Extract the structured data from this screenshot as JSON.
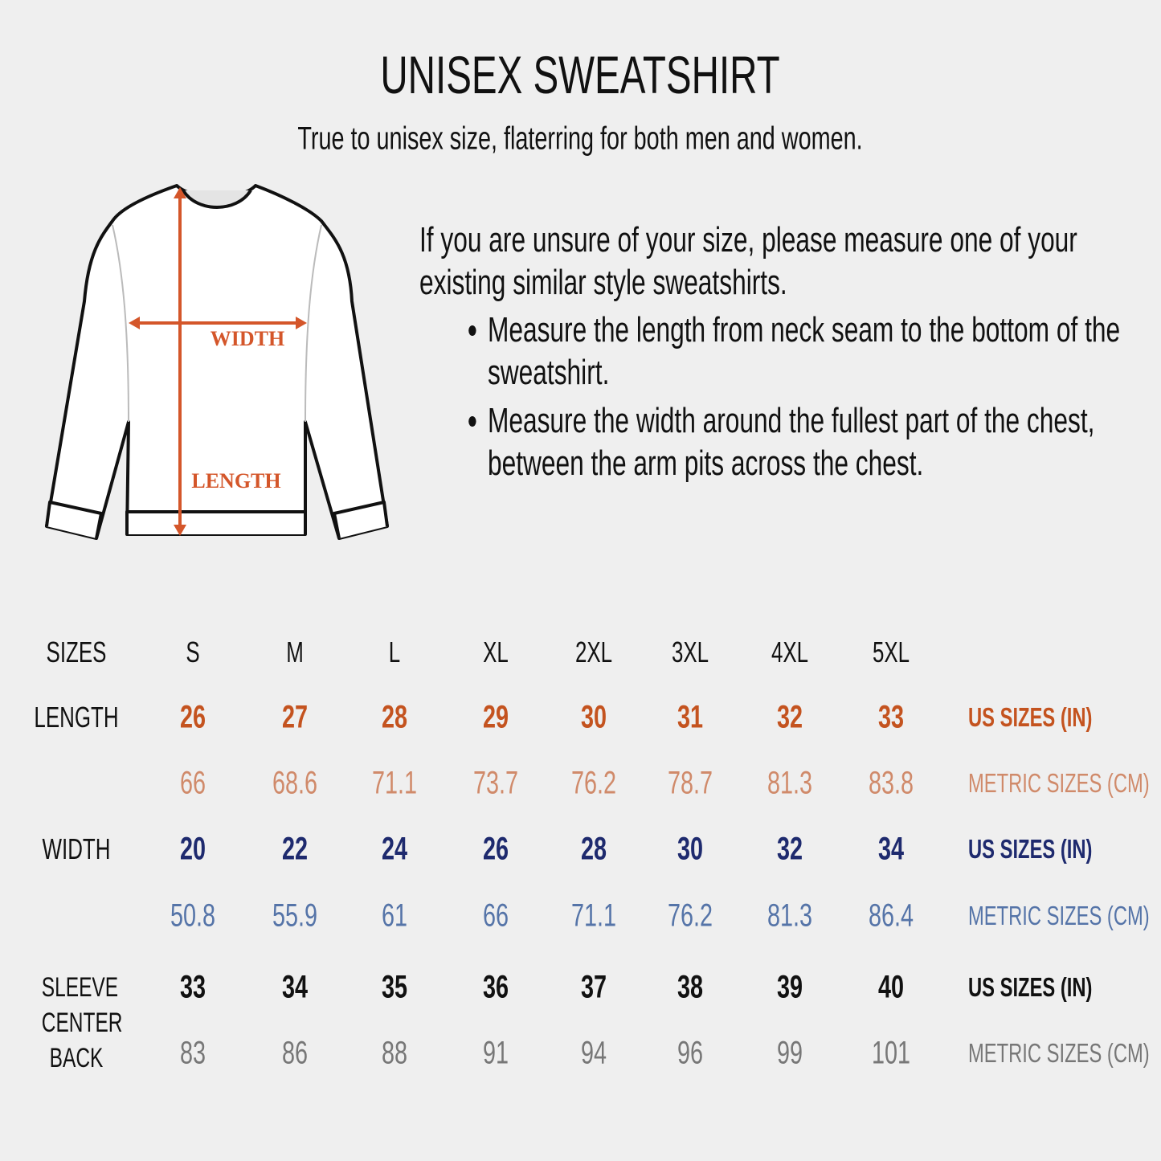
{
  "title": "UNISEX SWEATSHIRT",
  "subtitle": "True to unisex size, flaterring for both men and women.",
  "instructions": {
    "intro": "If you are unsure of your size, please measure one of your existing similar style sweatshirts.",
    "bullets": [
      "Measure the length from neck seam to the bottom of the sweatshirt.",
      "Measure the width around the fullest part of the chest, between the arm pits across the chest."
    ]
  },
  "diagram": {
    "width_label": "WIDTH",
    "length_label": "LENGTH",
    "accent": "#d4562a",
    "icon": "sweatshirt-outline"
  },
  "table": {
    "header_label": "SIZES",
    "sizes": [
      "S",
      "M",
      "L",
      "XL",
      "2XL",
      "3XL",
      "4XL",
      "5XL"
    ],
    "rows": [
      {
        "label": "LENGTH",
        "us": [
          "26",
          "27",
          "28",
          "29",
          "30",
          "31",
          "32",
          "33"
        ],
        "metric": [
          "66",
          "68.6",
          "71.1",
          "73.7",
          "76.2",
          "78.7",
          "81.3",
          "83.8"
        ],
        "us_unit": "US SIZES (IN)",
        "metric_unit": "METRIC SIZES (CM)",
        "us_color": "#c4531f",
        "metric_color": "#d08a6a"
      },
      {
        "label": "WIDTH",
        "us": [
          "20",
          "22",
          "24",
          "26",
          "28",
          "30",
          "32",
          "34"
        ],
        "metric": [
          "50.8",
          "55.9",
          "61",
          "66",
          "71.1",
          "76.2",
          "81.3",
          "86.4"
        ],
        "us_unit": "US SIZES (IN)",
        "metric_unit": "METRIC SIZES (CM)",
        "us_color": "#1e2a6e",
        "metric_color": "#5574a8"
      },
      {
        "label": "SLEEVE CENTER BACK",
        "us": [
          "33",
          "34",
          "35",
          "36",
          "37",
          "38",
          "39",
          "40"
        ],
        "metric": [
          "83",
          "86",
          "88",
          "91",
          "94",
          "96",
          "99",
          "101"
        ],
        "us_unit": "US SIZES (IN)",
        "metric_unit": "METRIC SIZES (CM)",
        "us_color": "#111111",
        "metric_color": "#777777"
      }
    ]
  }
}
